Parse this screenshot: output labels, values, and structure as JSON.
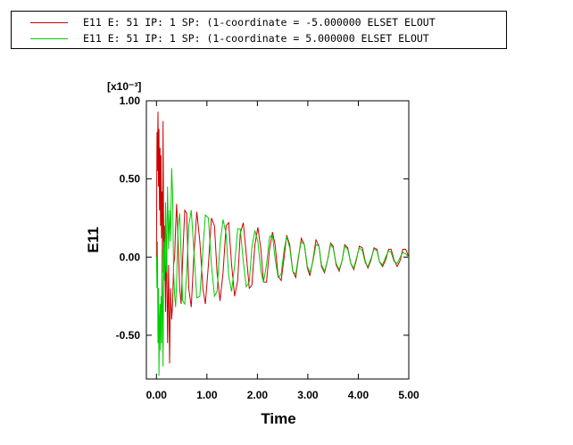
{
  "legend": {
    "entries": [
      {
        "label": "E11 E: 51 IP: 1 SP: (1-coordinate = -5.000000 ELSET ELOUT",
        "color": "#cc0000"
      },
      {
        "label": "E11 E: 51 IP: 1 SP: (1-coordinate = 5.000000 ELSET ELOUT",
        "color": "#00cc00"
      }
    ]
  },
  "chart_data": {
    "type": "line",
    "title": "",
    "xlabel": "Time",
    "ylabel": "E11",
    "y_multiplier": "[x10⁻³]",
    "xlim": [
      -0.2,
      5.0
    ],
    "ylim": [
      -0.78,
      1.0
    ],
    "grid": false,
    "legend_position": "top",
    "x_ticks": [
      {
        "value": 0.0,
        "label": "0.00"
      },
      {
        "value": 1.0,
        "label": "1.00"
      },
      {
        "value": 2.0,
        "label": "2.00"
      },
      {
        "value": 3.0,
        "label": "3.00"
      },
      {
        "value": 4.0,
        "label": "4.00"
      },
      {
        "value": 5.0,
        "label": "5.00"
      }
    ],
    "y_ticks": [
      {
        "value": -0.5,
        "label": "-0.50"
      },
      {
        "value": 0.0,
        "label": "0.00"
      },
      {
        "value": 0.5,
        "label": "0.50"
      },
      {
        "value": 1.0,
        "label": "1.00"
      }
    ],
    "series": [
      {
        "name": "E11 E: 51 IP: 1 SP: (1-coordinate = -5.000000 ELSET ELOUT",
        "color": "#cc0000",
        "x": [
          0.0,
          0.01,
          0.02,
          0.03,
          0.04,
          0.05,
          0.06,
          0.07,
          0.08,
          0.09,
          0.1,
          0.11,
          0.12,
          0.13,
          0.14,
          0.15,
          0.16,
          0.18,
          0.2,
          0.22,
          0.24,
          0.26,
          0.28,
          0.3,
          0.32,
          0.34,
          0.36,
          0.38,
          0.4,
          0.43,
          0.46,
          0.49,
          0.52,
          0.56,
          0.6,
          0.64,
          0.69,
          0.74,
          0.8,
          0.86,
          0.92,
          0.97,
          1.03,
          1.09,
          1.15,
          1.2,
          1.26,
          1.32,
          1.38,
          1.43,
          1.49,
          1.55,
          1.61,
          1.66,
          1.72,
          1.78,
          1.84,
          1.89,
          1.95,
          2.01,
          2.07,
          2.12,
          2.18,
          2.24,
          2.3,
          2.35,
          2.41,
          2.47,
          2.53,
          2.58,
          2.64,
          2.7,
          2.76,
          2.81,
          2.87,
          2.93,
          2.99,
          3.04,
          3.1,
          3.16,
          3.22,
          3.27,
          3.33,
          3.39,
          3.45,
          3.5,
          3.56,
          3.62,
          3.68,
          3.73,
          3.79,
          3.85,
          3.91,
          3.96,
          4.02,
          4.08,
          4.14,
          4.19,
          4.25,
          4.31,
          4.37,
          4.42,
          4.48,
          4.54,
          4.6,
          4.65,
          4.71,
          4.77,
          4.83,
          4.88,
          4.94,
          5.0
        ],
        "y": [
          0.0,
          0.8,
          0.55,
          0.93,
          0.45,
          0.82,
          0.3,
          0.7,
          0.2,
          0.65,
          0.12,
          0.42,
          -0.1,
          0.87,
          0.3,
          -0.05,
          0.2,
          -0.35,
          0.15,
          -0.55,
          -0.05,
          -0.68,
          -0.2,
          -0.4,
          -0.3,
          -0.05,
          0.0,
          0.2,
          0.34,
          0.1,
          -0.2,
          -0.3,
          0.0,
          0.3,
          0.28,
          -0.2,
          -0.32,
          0.0,
          0.29,
          0.1,
          -0.2,
          -0.3,
          -0.05,
          0.25,
          0.2,
          -0.1,
          -0.28,
          -0.1,
          0.2,
          0.22,
          -0.05,
          -0.25,
          -0.15,
          0.15,
          0.22,
          0.02,
          -0.2,
          -0.18,
          0.08,
          0.19,
          0.05,
          -0.16,
          -0.16,
          0.05,
          0.16,
          0.08,
          -0.12,
          -0.15,
          0.0,
          0.14,
          0.08,
          -0.09,
          -0.13,
          -0.01,
          0.12,
          0.08,
          -0.07,
          -0.12,
          -0.02,
          0.11,
          0.07,
          -0.06,
          -0.1,
          -0.02,
          0.09,
          0.07,
          -0.05,
          -0.09,
          -0.02,
          0.08,
          0.06,
          -0.04,
          -0.08,
          -0.02,
          0.07,
          0.06,
          -0.03,
          -0.07,
          -0.02,
          0.06,
          0.05,
          -0.03,
          -0.06,
          -0.02,
          0.05,
          0.05,
          -0.02,
          -0.06,
          -0.02,
          0.05,
          0.05,
          0.0
        ]
      },
      {
        "name": "E11 E: 51 IP: 1 SP: (1-coordinate = 5.000000 ELSET ELOUT",
        "color": "#00cc00",
        "x": [
          0.0,
          0.01,
          0.02,
          0.03,
          0.04,
          0.05,
          0.06,
          0.07,
          0.08,
          0.09,
          0.1,
          0.11,
          0.12,
          0.13,
          0.14,
          0.15,
          0.16,
          0.18,
          0.2,
          0.22,
          0.24,
          0.26,
          0.28,
          0.3,
          0.32,
          0.34,
          0.36,
          0.38,
          0.4,
          0.43,
          0.46,
          0.49,
          0.52,
          0.56,
          0.6,
          0.64,
          0.69,
          0.74,
          0.8,
          0.86,
          0.92,
          0.97,
          1.03,
          1.09,
          1.15,
          1.2,
          1.26,
          1.32,
          1.38,
          1.43,
          1.49,
          1.55,
          1.61,
          1.66,
          1.72,
          1.78,
          1.84,
          1.89,
          1.95,
          2.01,
          2.07,
          2.12,
          2.18,
          2.24,
          2.3,
          2.35,
          2.41,
          2.47,
          2.53,
          2.58,
          2.64,
          2.7,
          2.76,
          2.81,
          2.87,
          2.93,
          2.99,
          3.04,
          3.1,
          3.16,
          3.22,
          3.27,
          3.33,
          3.39,
          3.45,
          3.5,
          3.56,
          3.62,
          3.68,
          3.73,
          3.79,
          3.85,
          3.91,
          3.96,
          4.02,
          4.08,
          4.14,
          4.19,
          4.25,
          4.31,
          4.37,
          4.42,
          4.48,
          4.54,
          4.6,
          4.65,
          4.71,
          4.77,
          4.83,
          4.88,
          4.94,
          5.0
        ],
        "y": [
          0.0,
          -0.2,
          0.1,
          -0.55,
          -0.2,
          -0.76,
          -0.4,
          -0.3,
          -0.6,
          -0.25,
          -0.55,
          0.05,
          -0.3,
          -0.7,
          -0.2,
          0.1,
          -0.15,
          0.35,
          -0.1,
          0.45,
          0.05,
          0.3,
          0.1,
          0.57,
          0.4,
          -0.1,
          -0.25,
          -0.32,
          -0.15,
          0.2,
          0.28,
          0.0,
          -0.28,
          -0.3,
          -0.1,
          0.2,
          0.3,
          0.05,
          -0.26,
          -0.25,
          0.05,
          0.27,
          0.25,
          -0.05,
          -0.25,
          -0.22,
          0.08,
          0.24,
          0.15,
          -0.12,
          -0.22,
          -0.05,
          0.18,
          0.18,
          -0.03,
          -0.19,
          -0.16,
          0.06,
          0.17,
          0.1,
          -0.09,
          -0.16,
          -0.05,
          0.13,
          0.14,
          -0.01,
          -0.13,
          -0.11,
          0.05,
          0.13,
          0.06,
          -0.09,
          -0.11,
          0.0,
          0.1,
          0.08,
          -0.06,
          -0.1,
          -0.03,
          0.08,
          0.07,
          -0.05,
          -0.09,
          -0.02,
          0.08,
          0.06,
          -0.04,
          -0.08,
          -0.02,
          0.07,
          0.05,
          -0.04,
          -0.07,
          -0.01,
          0.06,
          0.04,
          -0.04,
          -0.06,
          -0.01,
          0.05,
          0.04,
          -0.03,
          -0.05,
          0.0,
          0.04,
          0.03,
          -0.03,
          -0.04,
          0.0,
          0.03,
          0.02,
          0.0
        ]
      }
    ]
  }
}
